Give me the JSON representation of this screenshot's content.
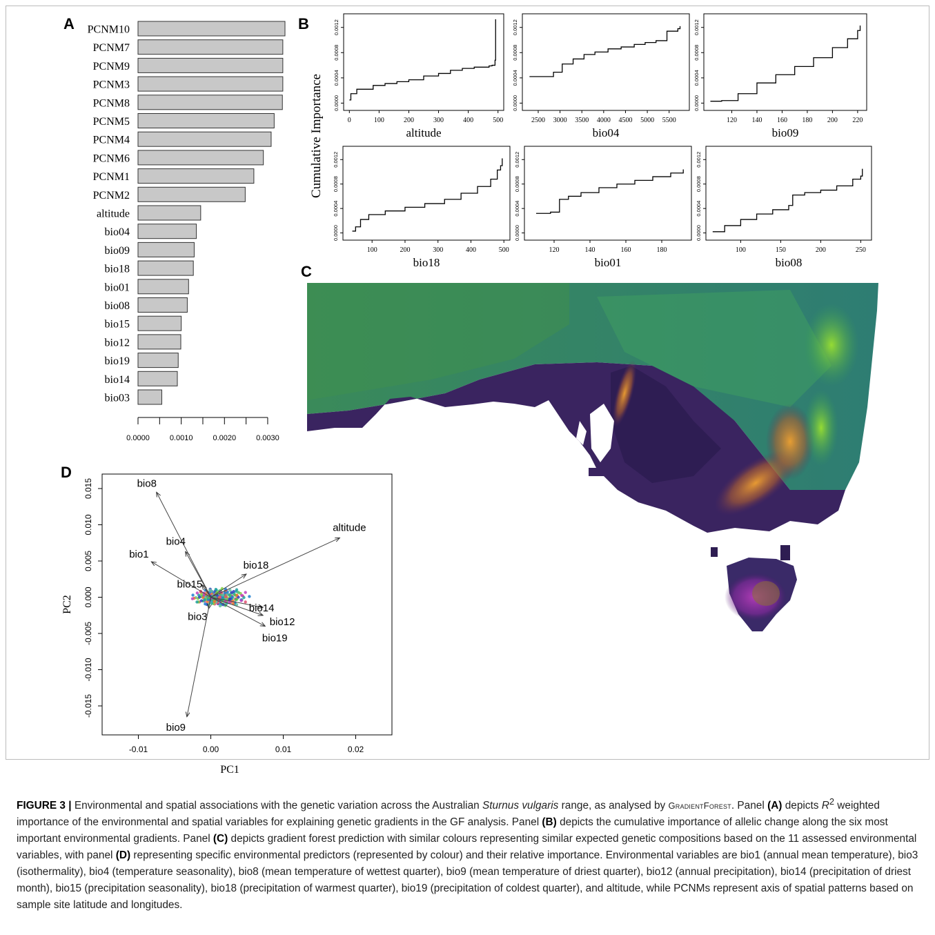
{
  "panels": {
    "A": "A",
    "B": "B",
    "C": "C",
    "D": "D"
  },
  "colors": {
    "bar_fill": "#c8c8c8",
    "bar_stroke": "#333333",
    "line": "#000000",
    "map_green": "#2f8a55",
    "map_purple": "#3a1f5a",
    "map_orange": "#e08a2a"
  },
  "chart_data": [
    {
      "type": "bar",
      "orientation": "horizontal",
      "panel": "A",
      "categories": [
        "PCNM10",
        "PCNM7",
        "PCNM9",
        "PCNM3",
        "PCNM8",
        "PCNM5",
        "PCNM4",
        "PCNM6",
        "PCNM1",
        "PCNM2",
        "altitude",
        "bio04",
        "bio09",
        "bio18",
        "bio01",
        "bio08",
        "bio15",
        "bio12",
        "bio19",
        "bio14",
        "bio03"
      ],
      "values": [
        0.0034,
        0.00335,
        0.00335,
        0.00335,
        0.00334,
        0.00315,
        0.00308,
        0.0029,
        0.00268,
        0.00248,
        0.00145,
        0.00135,
        0.0013,
        0.00128,
        0.00117,
        0.00114,
        0.001,
        0.00099,
        0.00093,
        0.00091,
        0.00055
      ],
      "xlim": [
        0,
        0.0034
      ],
      "xticks": [
        "0.0000",
        "0.0010",
        "0.0020",
        "0.0030"
      ],
      "xtick_values": [
        0,
        0.001,
        0.002,
        0.003
      ]
    },
    {
      "type": "line",
      "panel": "B",
      "ylabel": "Cumulative Importance",
      "yticks": [
        "0.0000",
        "0.0004",
        "0.0008",
        "0.0012"
      ],
      "subplots": [
        {
          "xlabel": "altitude",
          "xticks": [
            "0",
            "100",
            "200",
            "300",
            "400",
            "500"
          ],
          "xlim": [
            -10,
            510
          ],
          "x": [
            0,
            5,
            25,
            80,
            120,
            160,
            200,
            250,
            300,
            340,
            380,
            420,
            470,
            480,
            490,
            492
          ],
          "y": [
            5e-05,
            0.00015,
            0.00022,
            0.00028,
            0.00031,
            0.00034,
            0.00037,
            0.00043,
            0.00047,
            0.00052,
            0.00055,
            0.00057,
            0.00059,
            0.0006,
            0.00068,
            0.00133
          ]
        },
        {
          "xlabel": "bio04",
          "xticks": [
            "2500",
            "3000",
            "3500",
            "4000",
            "4500",
            "5000",
            "5500"
          ],
          "xlim": [
            2200,
            5900
          ],
          "x": [
            2300,
            2550,
            2850,
            3050,
            3300,
            3550,
            3800,
            4100,
            4400,
            4700,
            4950,
            5200,
            5450,
            5700,
            5750
          ],
          "y": [
            0.00042,
            0.00042,
            0.00049,
            0.00062,
            0.0007,
            0.00077,
            0.00081,
            0.00086,
            0.00089,
            0.00093,
            0.00096,
            0.00099,
            0.00114,
            0.00118,
            0.00122
          ]
        },
        {
          "xlabel": "bio09",
          "xticks": [
            "120",
            "140",
            "160",
            "180",
            "200",
            "220"
          ],
          "xlim": [
            100,
            225
          ],
          "x": [
            103,
            112,
            125,
            140,
            155,
            170,
            185,
            200,
            212,
            220,
            222
          ],
          "y": [
            3e-05,
            4e-05,
            0.00015,
            0.00032,
            0.00045,
            0.00058,
            0.00072,
            0.00088,
            0.00102,
            0.00115,
            0.00123
          ]
        },
        {
          "xlabel": "bio18",
          "xticks": [
            "100",
            "200",
            "300",
            "400",
            "500"
          ],
          "xlim": [
            20,
            510
          ],
          "x": [
            40,
            50,
            65,
            90,
            140,
            200,
            260,
            320,
            370,
            420,
            460,
            480,
            490,
            495
          ],
          "y": [
            3e-05,
            0.0001,
            0.00022,
            0.0003,
            0.00036,
            0.00042,
            0.00048,
            0.00055,
            0.00065,
            0.00076,
            0.00088,
            0.00103,
            0.0011,
            0.00122
          ]
        },
        {
          "xlabel": "bio01",
          "xticks": [
            "120",
            "140",
            "160",
            "180"
          ],
          "xlim": [
            105,
            195
          ],
          "x": [
            110,
            118,
            123,
            128,
            135,
            145,
            155,
            165,
            175,
            185,
            192
          ],
          "y": [
            0.00032,
            0.00034,
            0.00055,
            0.0006,
            0.00066,
            0.00074,
            0.0008,
            0.00086,
            0.00092,
            0.00098,
            0.00104
          ]
        },
        {
          "xlabel": "bio08",
          "xticks": [
            "100",
            "150",
            "200",
            "250"
          ],
          "xlim": [
            60,
            260
          ],
          "x": [
            65,
            80,
            100,
            120,
            140,
            160,
            165,
            180,
            200,
            220,
            240,
            250,
            252
          ],
          "y": [
            2e-05,
            0.00012,
            0.00022,
            0.00031,
            0.00038,
            0.00045,
            0.00062,
            0.00066,
            0.0007,
            0.00077,
            0.00088,
            0.00093,
            0.00105
          ]
        }
      ]
    },
    {
      "type": "scatter",
      "panel": "D",
      "xlabel": "PC1",
      "ylabel": "PC2",
      "xlim": [
        -0.015,
        0.025
      ],
      "ylim": [
        -0.019,
        0.017
      ],
      "xticks": [
        "-0.01",
        "0.00",
        "0.01",
        "0.02"
      ],
      "xtick_values": [
        -0.01,
        0,
        0.01,
        0.02
      ],
      "yticks": [
        "-0.015",
        "-0.010",
        "-0.005",
        "0.000",
        "0.005",
        "0.010",
        "0.015"
      ],
      "ytick_values": [
        -0.015,
        -0.01,
        -0.005,
        0,
        0.005,
        0.01,
        0.015
      ],
      "vectors": [
        {
          "label": "bio8",
          "x": -0.0075,
          "y": 0.0145
        },
        {
          "label": "altitude",
          "x": 0.0178,
          "y": 0.0082
        },
        {
          "label": "bio4",
          "x": -0.0035,
          "y": 0.0063
        },
        {
          "label": "bio1",
          "x": -0.0082,
          "y": 0.0049
        },
        {
          "label": "bio18",
          "x": 0.0049,
          "y": 0.0032
        },
        {
          "label": "bio15",
          "x": -0.0012,
          "y": 0.0017
        },
        {
          "label": "bio3",
          "x": -0.0003,
          "y": -0.0016
        },
        {
          "label": "bio9",
          "x": -0.0033,
          "y": -0.0165
        },
        {
          "label": "bio14",
          "x": 0.0072,
          "y": -0.0014
        },
        {
          "label": "bio12",
          "x": 0.0072,
          "y": -0.0025
        },
        {
          "label": "bio19",
          "x": 0.0075,
          "y": -0.004
        }
      ]
    }
  ],
  "caption": {
    "lead": "FIGURE 3 |",
    "t1": " Environmental and spatial associations with the genetic variation across the Australian ",
    "species": "Sturnus vulgaris",
    "t2": " range, as analysed by ",
    "method": "GradientForest",
    "t3": ". Panel ",
    "pA": "(A)",
    "t4": " depicts ",
    "r2": "R",
    "sup": "2",
    "t5": " weighted importance of the environmental and spatial variables for explaining genetic gradients in the GF analysis. Panel ",
    "pB": "(B)",
    "t6": " depicts the cumulative importance of allelic change along the six most important environmental gradients. Panel ",
    "pC": "(C)",
    "t7": " depicts gradient forest prediction with similar colours representing similar expected genetic compositions based on the 11 assessed environmental variables, with panel ",
    "pD": "(D)",
    "t8": " representing specific environmental predictors (represented by colour) and their relative importance. Environmental variables are bio1 (annual mean temperature), bio3 (isothermality), bio4 (temperature seasonality), bio8 (mean temperature of wettest quarter), bio9 (mean temperature of driest quarter), bio12 (annual precipitation), bio14 (precipitation of driest month), bio15 (precipitation seasonality), bio18 (precipitation of warmest quarter), bio19 (precipitation of coldest quarter), and altitude, while PCNMs represent axis of spatial patterns based on sample site latitude and longitudes."
  }
}
